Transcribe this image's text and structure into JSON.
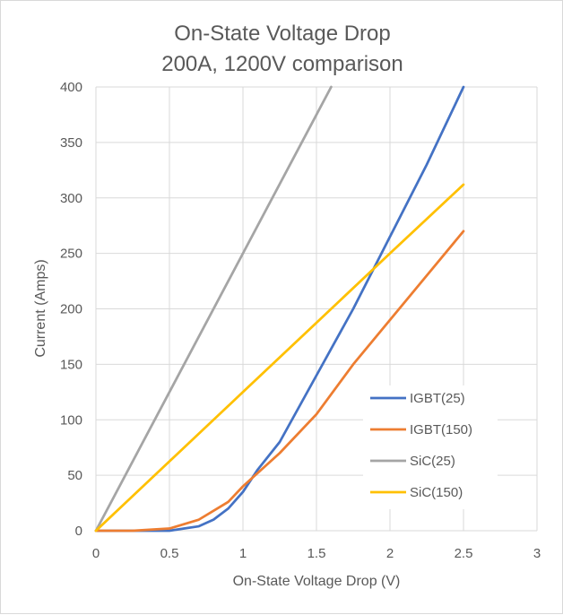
{
  "chart_data": {
    "type": "line",
    "title": "On-State Voltage Drop",
    "subtitle": "200A, 1200V comparison",
    "xlabel": "On-State Voltage Drop (V)",
    "ylabel": "Current (Amps)",
    "xlim": [
      0,
      3
    ],
    "ylim": [
      0,
      400
    ],
    "xticks": [
      0,
      0.5,
      1,
      1.5,
      2,
      2.5,
      3
    ],
    "xtick_labels": [
      "0",
      "0.5",
      "1",
      "1.5",
      "2",
      "2.5",
      "3"
    ],
    "yticks": [
      0,
      50,
      100,
      150,
      200,
      250,
      300,
      350,
      400
    ],
    "ytick_labels": [
      "0",
      "50",
      "100",
      "150",
      "200",
      "250",
      "300",
      "350",
      "400"
    ],
    "grid": true,
    "legend_position": "bottom-right",
    "series": [
      {
        "name": "IGBT(25)",
        "color": "#4472C4",
        "x": [
          0,
          0.5,
          0.6,
          0.7,
          0.8,
          0.9,
          1.0,
          1.1,
          1.25,
          1.5,
          1.75,
          2.0,
          2.25,
          2.5
        ],
        "y": [
          0,
          0,
          2,
          4,
          10,
          20,
          35,
          55,
          80,
          140,
          200,
          265,
          330,
          400
        ]
      },
      {
        "name": "IGBT(150)",
        "color": "#ED7D31",
        "x": [
          0,
          0.25,
          0.5,
          0.7,
          0.9,
          1.0,
          1.1,
          1.25,
          1.5,
          1.75,
          2.0,
          2.25,
          2.5
        ],
        "y": [
          0,
          0,
          2,
          10,
          26,
          40,
          52,
          70,
          105,
          150,
          190,
          230,
          270
        ]
      },
      {
        "name": "SiC(25)",
        "color": "#A5A5A5",
        "x": [
          0,
          0.5,
          0.9,
          1.0,
          1.5,
          1.6
        ],
        "y": [
          0,
          125,
          225,
          250,
          375,
          400
        ]
      },
      {
        "name": "SiC(150)",
        "color": "#FFC000",
        "x": [
          0,
          0.5,
          1.0,
          1.5,
          2.0,
          2.5
        ],
        "y": [
          0,
          62.5,
          125,
          187.5,
          250,
          312
        ]
      }
    ]
  }
}
